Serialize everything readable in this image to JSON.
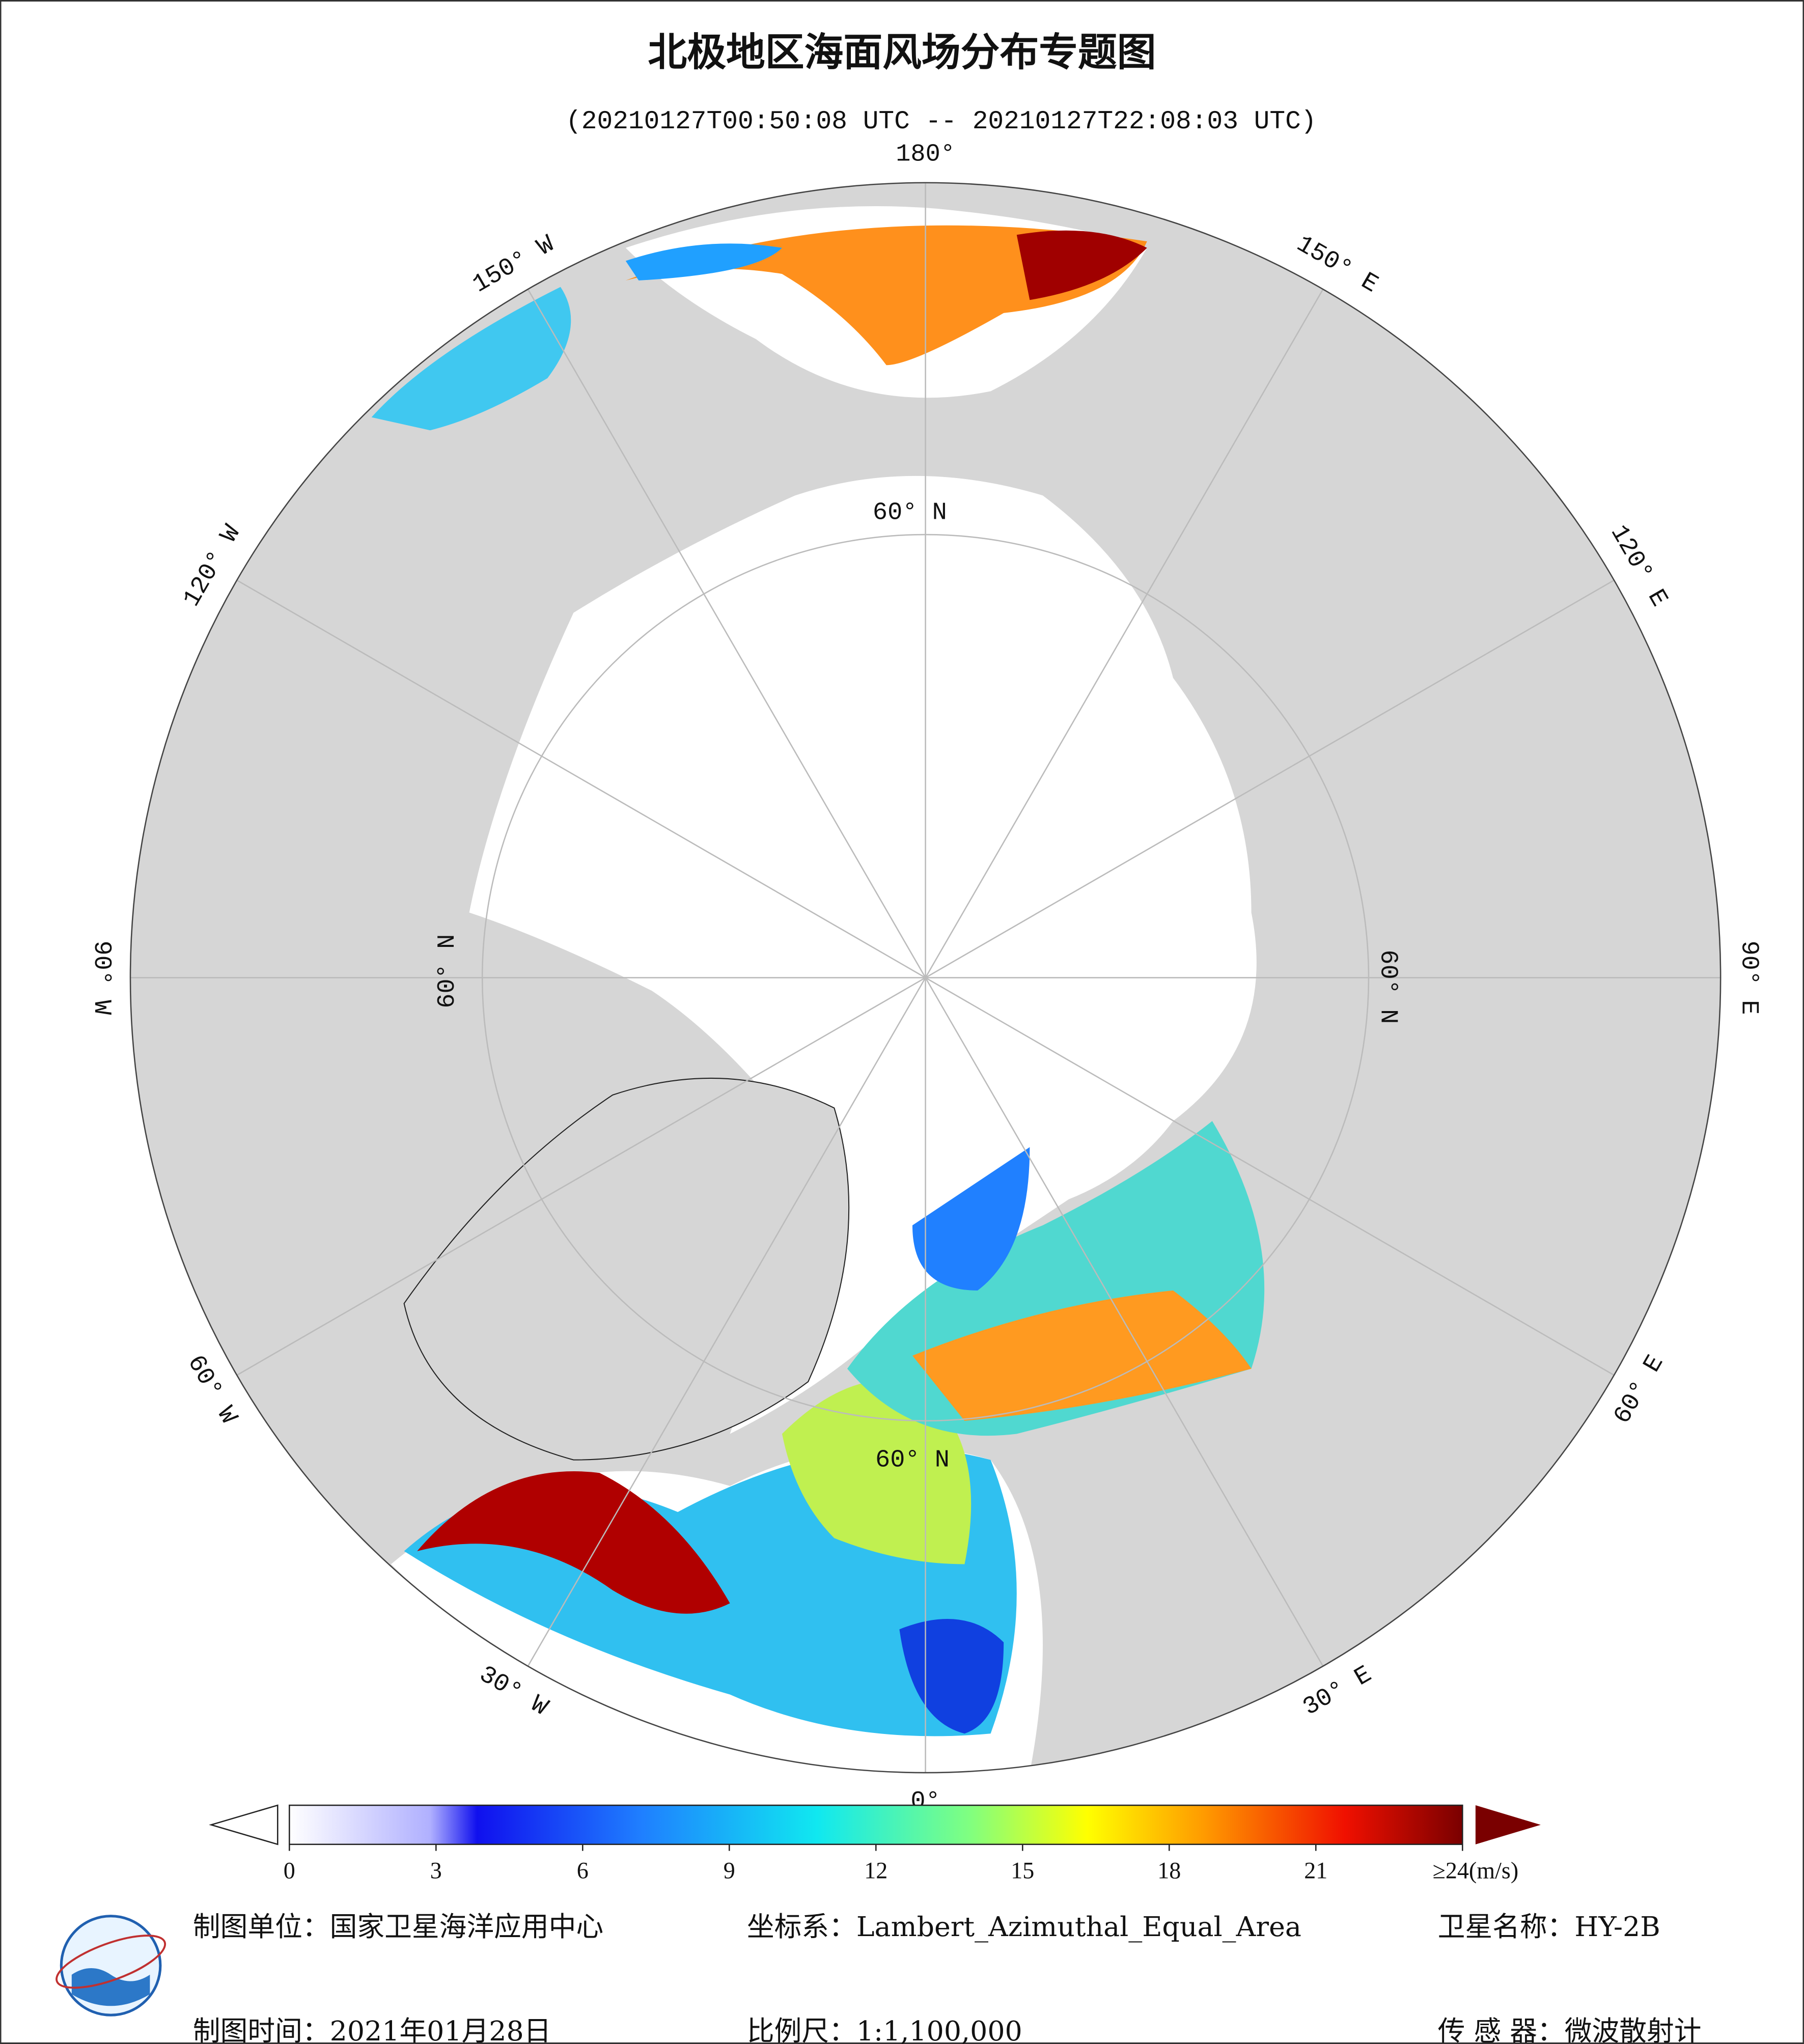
{
  "header": {
    "title": "北极地区海面风场分布专题图",
    "subtitle": "(20210127T00:50:08 UTC -- 20210127T22:08:03 UTC)"
  },
  "map": {
    "longitude_labels": [
      {
        "value": 180,
        "label": "180°"
      },
      {
        "value": 150,
        "label": "150° E"
      },
      {
        "value": 120,
        "label": "120° E"
      },
      {
        "value": 90,
        "label": "90° E"
      },
      {
        "value": 60,
        "label": "60° E"
      },
      {
        "value": 30,
        "label": "30° E"
      },
      {
        "value": 0,
        "label": "0°"
      },
      {
        "value": -30,
        "label": "30° W"
      },
      {
        "value": -60,
        "label": "60° W"
      },
      {
        "value": -90,
        "label": "90° W"
      },
      {
        "value": -120,
        "label": "120° W"
      },
      {
        "value": -150,
        "label": "150° W"
      }
    ],
    "latitude_labels": [
      "60° N",
      "60° N",
      "60° N",
      "60° N"
    ]
  },
  "colorbar": {
    "lim": [
      0,
      24
    ],
    "ticks": [
      0,
      3,
      6,
      9,
      12,
      15,
      18,
      21,
      {
        "value": 24,
        "label": "≥24(m/s)"
      }
    ]
  },
  "footer": {
    "mapping_unit": "制图单位：国家卫星海洋应用中心",
    "mapping_date": "制图时间：2021年01月28日",
    "coordinate_system": "坐标系：Lambert_Azimuthal_Equal_Area",
    "scale": "比例尺：1:1,100,000",
    "satellite": "卫星名称：HY-2B",
    "sensor": "传 感 器：微波散射计"
  }
}
